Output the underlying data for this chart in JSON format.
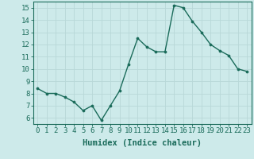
{
  "x": [
    0,
    1,
    2,
    3,
    4,
    5,
    6,
    7,
    8,
    9,
    10,
    11,
    12,
    13,
    14,
    15,
    16,
    17,
    18,
    19,
    20,
    21,
    22,
    23
  ],
  "y": [
    8.4,
    8.0,
    8.0,
    7.7,
    7.3,
    6.6,
    7.0,
    5.8,
    7.0,
    8.2,
    10.4,
    12.5,
    11.8,
    11.4,
    11.4,
    15.2,
    15.0,
    13.9,
    13.0,
    12.0,
    11.5,
    11.1,
    10.0,
    9.8
  ],
  "xlabel": "Humidex (Indice chaleur)",
  "line_color": "#1a6b5a",
  "marker_color": "#1a6b5a",
  "bg_color": "#cdeaea",
  "grid_color": "#b8d8d8",
  "xlim": [
    -0.5,
    23.5
  ],
  "ylim": [
    5.5,
    15.5
  ],
  "yticks": [
    6,
    7,
    8,
    9,
    10,
    11,
    12,
    13,
    14,
    15
  ],
  "xticks": [
    0,
    1,
    2,
    3,
    4,
    5,
    6,
    7,
    8,
    9,
    10,
    11,
    12,
    13,
    14,
    15,
    16,
    17,
    18,
    19,
    20,
    21,
    22,
    23
  ],
  "tick_fontsize": 6.5,
  "xlabel_fontsize": 7.5
}
